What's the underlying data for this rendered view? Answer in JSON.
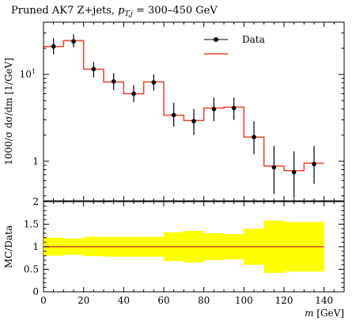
{
  "chart_data": {
    "type": "line",
    "title_main": "Pruned AK7 Z+jets, ",
    "title_kin": "p",
    "title_sub": "T,j",
    "title_range": " = 300–450 GeV",
    "xlabel_main": "m",
    "xlabel_unit": " [GeV]",
    "ylabel_top": "1000/σ dσ/dm [1/GeV]",
    "ylabel_bottom": "MC/Data",
    "legend": {
      "data_label": "Data",
      "mc_label": "",
      "position": "top-right"
    },
    "x_range": [
      0,
      150
    ],
    "x_ticks": [
      0,
      20,
      40,
      60,
      80,
      100,
      120,
      140
    ],
    "x_tick_labels": [
      "0",
      "20",
      "40",
      "60",
      "80",
      "100",
      "120",
      "140"
    ],
    "top_y_scale": "log",
    "top_y_range": [
      0.35,
      40
    ],
    "top_y_tick_labels": [
      {
        "value": 10,
        "label": "10"
      },
      {
        "value": 1,
        "label": "1"
      }
    ],
    "top_y_tick_sup": "1",
    "bottom_y_range": [
      0,
      2
    ],
    "bottom_y_ticks": [
      0,
      0.5,
      1,
      1.5,
      2
    ],
    "bottom_y_tick_labels": [
      "0",
      "0.5",
      "1",
      "1.5",
      "2"
    ],
    "series": [
      {
        "name": "Data",
        "style": "points",
        "x": [
          5,
          15,
          25,
          35,
          45,
          55,
          65,
          75,
          85,
          95,
          105,
          115,
          125,
          135
        ],
        "y": [
          21,
          24,
          11.5,
          8.3,
          6.0,
          8.1,
          3.4,
          2.9,
          4.0,
          4.1,
          1.9,
          0.85,
          0.75,
          0.93
        ],
        "yerr_low": [
          17,
          20.5,
          9.2,
          6.6,
          4.8,
          6.5,
          2.5,
          2.0,
          2.9,
          3.0,
          1.2,
          0.42,
          0.38,
          0.55
        ],
        "yerr_high": [
          26,
          29,
          14,
          10.3,
          7.5,
          10,
          4.7,
          4.0,
          5.4,
          5.4,
          2.9,
          1.5,
          1.3,
          1.5
        ]
      },
      {
        "name": "",
        "style": "step",
        "color": "#e8412a",
        "bin_edges": [
          0,
          10,
          20,
          30,
          40,
          50,
          60,
          70,
          80,
          90,
          100,
          110,
          120,
          130,
          140
        ],
        "values": [
          21,
          24.5,
          11.5,
          8.2,
          6.0,
          8.2,
          3.4,
          2.95,
          4.1,
          4.2,
          1.9,
          0.88,
          0.78,
          0.95
        ]
      }
    ],
    "ratio": {
      "bin_edges": [
        0,
        10,
        20,
        30,
        40,
        50,
        60,
        70,
        80,
        90,
        100,
        110,
        120,
        130,
        140
      ],
      "band_low": [
        0.8,
        0.82,
        0.79,
        0.78,
        0.78,
        0.78,
        0.68,
        0.65,
        0.7,
        0.72,
        0.6,
        0.42,
        0.45,
        0.45
      ],
      "band_high": [
        1.2,
        1.18,
        1.22,
        1.22,
        1.22,
        1.22,
        1.32,
        1.35,
        1.3,
        1.28,
        1.4,
        1.58,
        1.55,
        1.55
      ],
      "line_value": 1.0,
      "band_color": "#ffff00",
      "line_color": "#e8412a"
    }
  }
}
